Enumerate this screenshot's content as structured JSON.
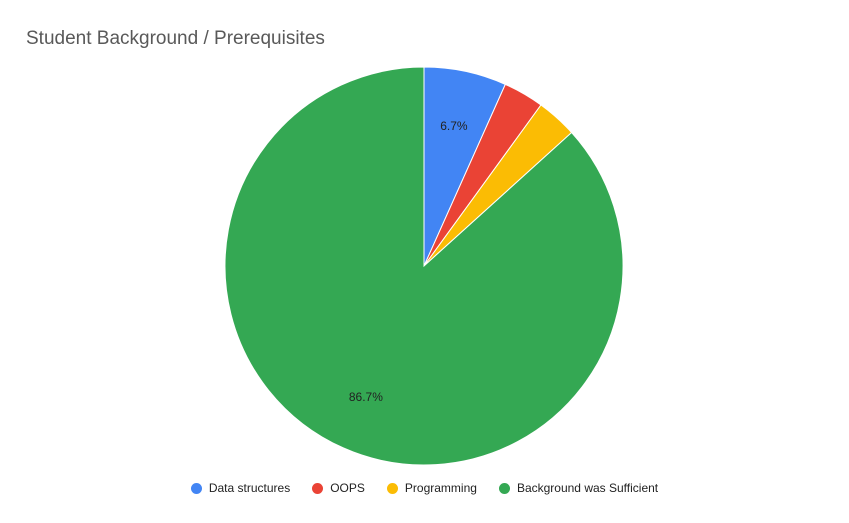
{
  "chart_data": {
    "type": "pie",
    "title": "Student Background / Prerequisites",
    "categories": [
      "Data structures",
      "OOPS",
      "Programming",
      "Background was Sufficient"
    ],
    "values": [
      6.7,
      3.3,
      3.3,
      86.7
    ],
    "colors": [
      "#4285f4",
      "#ea4335",
      "#fbbc04",
      "#34a853"
    ],
    "data_labels": [
      "6.7%",
      "",
      "",
      "86.7%"
    ],
    "legend_position": "bottom"
  }
}
